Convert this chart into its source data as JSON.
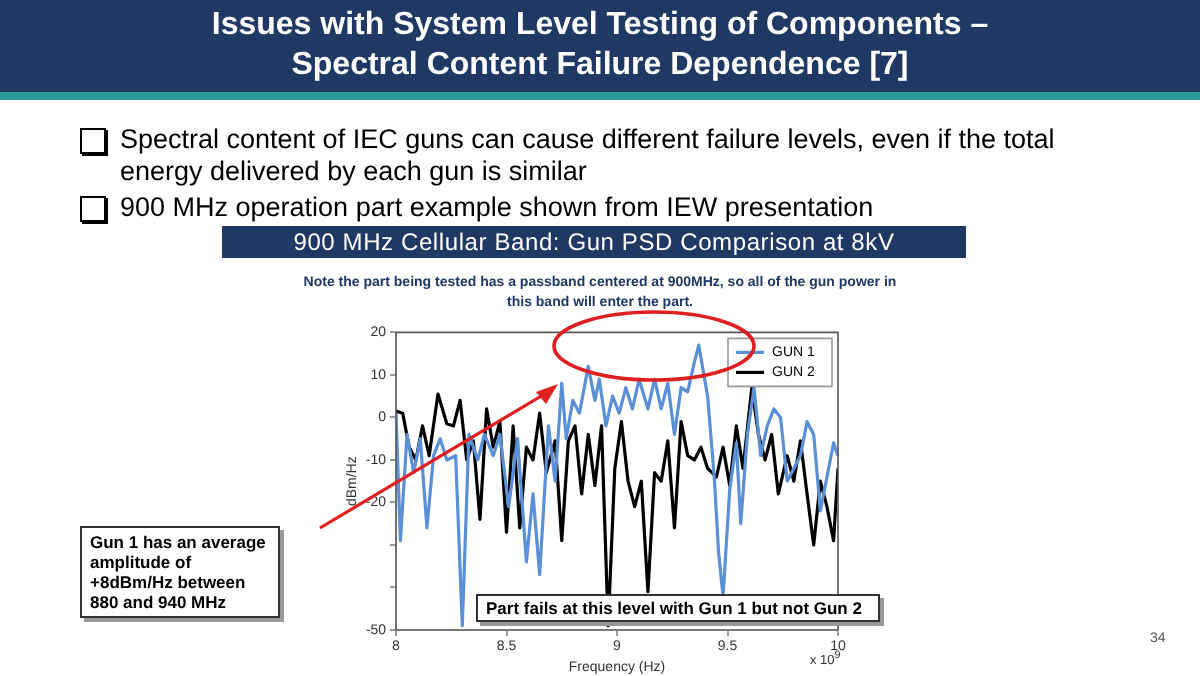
{
  "chart_data": {
    "type": "line",
    "title": "Issues with System Level Testing of Components – Spectral Content Failure Dependence [7]",
    "subtitle": "900 MHz Cellular Band: Gun PSD Comparison at 8kV",
    "xlabel": "Frequency (Hz)",
    "ylabel": "dBm/Hz",
    "annotations": [
      "Spectral content of IEC guns can cause different failure levels, even if the total energy delivered by each gun is similar",
      "900 MHz operation part example shown from IEW presentation",
      "Note the part being tested has a passband centered at 900MHz, so all of the gun power in this band will enter the part.",
      "Gun 1 has an average amplitude of +8dBm/Hz between 880 and 940 MHz",
      "Part fails at this level with Gun 1 but not Gun 2",
      "x 10$^{9}$",
      "34"
    ],
    "xlim": [
      8,
      10
    ],
    "xticks": [
      8,
      8.5,
      9,
      9.5,
      10
    ],
    "ylim": [
      -50,
      20
    ],
    "yticks": [
      -50,
      {
        "value": -40,
        "label": null
      },
      {
        "value": -30,
        "label": null
      },
      -20,
      -10,
      0,
      10,
      20
    ],
    "grid": false,
    "legend": "top right",
    "marker": "none",
    "line_style": "solid",
    "series": [
      {
        "name": "GUN 1",
        "color": "#5b8fd6",
        "x": [
          8.0,
          8.02,
          8.05,
          8.08,
          8.11,
          8.14,
          8.17,
          8.2,
          8.23,
          8.27,
          8.3,
          8.33,
          8.37,
          8.4,
          8.44,
          8.47,
          8.51,
          8.55,
          8.59,
          8.62,
          8.65,
          8.69,
          8.72,
          8.75,
          8.77,
          8.8,
          8.83,
          8.87,
          8.9,
          8.92,
          8.95,
          8.98,
          9.01,
          9.04,
          9.07,
          9.1,
          9.14,
          9.17,
          9.2,
          9.23,
          9.26,
          9.29,
          9.32,
          9.35,
          9.37,
          9.41,
          9.44,
          9.46,
          9.48,
          9.51,
          9.54,
          9.56,
          9.59,
          9.62,
          9.65,
          9.68,
          9.71,
          9.74,
          9.77,
          9.8,
          9.83,
          9.86,
          9.89,
          9.92,
          9.95,
          9.98,
          10.0
        ],
        "values": [
          1,
          -29,
          -4,
          -13,
          -5,
          -26,
          -9,
          -5,
          -10,
          -9,
          -49,
          -4,
          -10,
          -4,
          -9,
          -4,
          -21,
          -5,
          -34,
          -18,
          -37,
          -2,
          -15,
          8,
          -5,
          4,
          1,
          12,
          4,
          9,
          -2,
          5,
          1,
          7,
          2,
          9,
          2,
          9,
          2,
          8,
          -4,
          7,
          6,
          13,
          17,
          5,
          -14,
          -32,
          -42,
          -17,
          -6,
          -25,
          -4,
          7,
          -9,
          -2,
          2,
          0,
          -15,
          -12,
          -9,
          -1,
          -4,
          -22,
          -14,
          -6,
          -9
        ]
      },
      {
        "name": "GUN 2",
        "color": "#000000",
        "x": [
          8.0,
          8.03,
          8.06,
          8.09,
          8.12,
          8.15,
          8.19,
          8.23,
          8.26,
          8.29,
          8.32,
          8.35,
          8.38,
          8.41,
          8.44,
          8.47,
          8.5,
          8.53,
          8.56,
          8.59,
          8.62,
          8.65,
          8.68,
          8.72,
          8.75,
          8.78,
          8.81,
          8.84,
          8.87,
          8.9,
          8.93,
          8.96,
          8.99,
          9.02,
          9.05,
          9.08,
          9.11,
          9.14,
          9.17,
          9.2,
          9.23,
          9.26,
          9.29,
          9.32,
          9.35,
          9.38,
          9.41,
          9.45,
          9.48,
          9.51,
          9.54,
          9.57,
          9.61,
          9.64,
          9.67,
          9.7,
          9.73,
          9.77,
          9.8,
          9.83,
          9.86,
          9.89,
          9.92,
          9.95,
          9.98,
          10.0
        ],
        "values": [
          1.5,
          1,
          -7,
          -10,
          -2,
          -9,
          5.5,
          -1.5,
          -2,
          4,
          -10,
          -5.5,
          -24,
          2,
          -7,
          -1,
          -27,
          -2,
          -26,
          -7,
          -10,
          1,
          -13,
          -5.5,
          -29,
          -5.5,
          -2,
          -18,
          -4,
          -16,
          -2,
          -49,
          -12,
          -1,
          -15,
          -21,
          -15,
          -41,
          -13,
          -15,
          -5.5,
          -26,
          -1,
          -9,
          -10,
          -7,
          -12,
          -14,
          -7,
          -16,
          -2,
          -12,
          7,
          -4,
          -10,
          -4,
          -18,
          -9,
          -15,
          -5.5,
          -18,
          -30,
          -15,
          -21,
          -29,
          -12
        ]
      }
    ]
  }
}
